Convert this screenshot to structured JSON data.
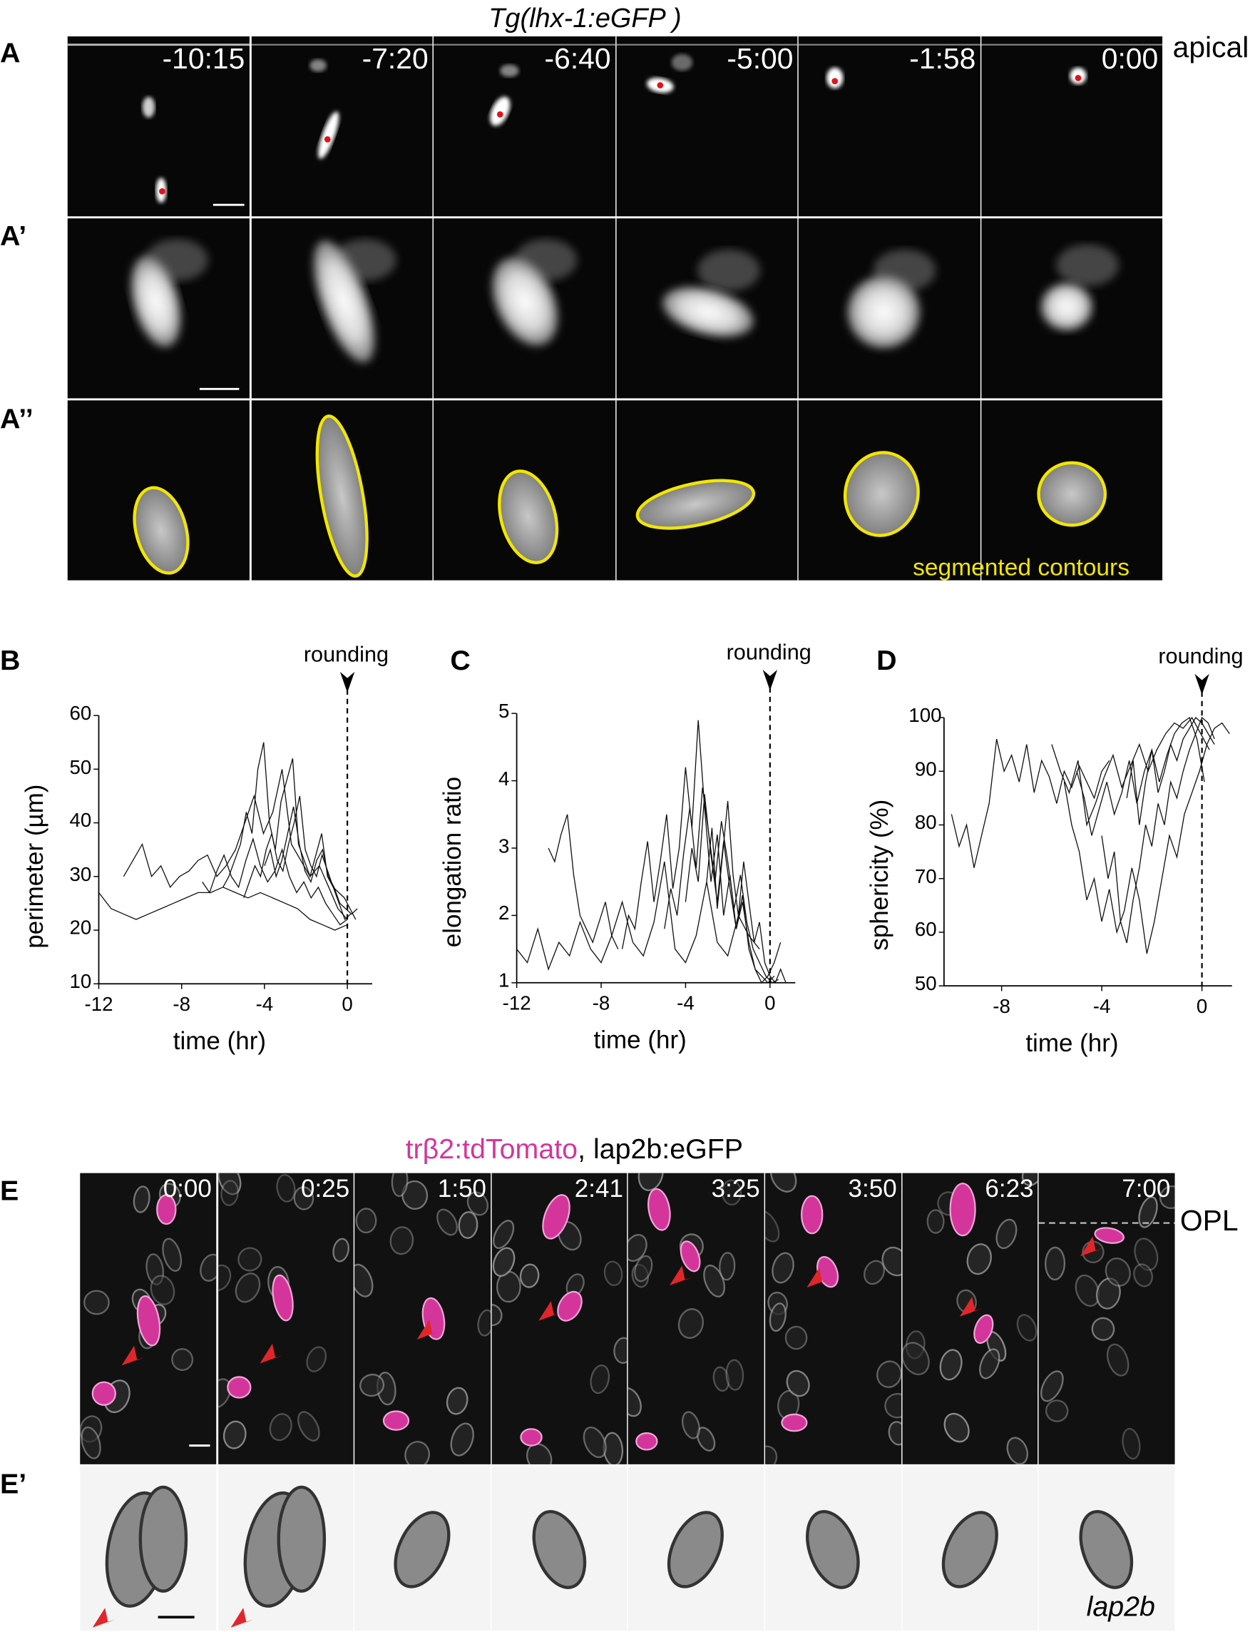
{
  "panel_labels": {
    "A": "A",
    "A1": "A’",
    "A2": "A’’",
    "B": "B",
    "C": "C",
    "D": "D",
    "E": "E",
    "E1": "E’"
  },
  "top": {
    "title": "Tg(lhx-1:eGFP )",
    "apical_label": "apical",
    "times": [
      "-10:15",
      "-7:20",
      "-6:40",
      "-5:00",
      "-1:58",
      "0:00"
    ],
    "contour_label": "segmented contours",
    "contour_color": "#f2e600",
    "marker_color": "#e0141e"
  },
  "bottom": {
    "title_magenta": "trβ2:tdTomato",
    "title_rest": ", lap2b:eGFP",
    "magenta_color": "#d4359b",
    "times": [
      "0:00",
      "0:25",
      "1:50",
      "2:41",
      "3:25",
      "3:50",
      "6:23",
      "7:00"
    ],
    "opl_label": "OPL",
    "lap2b_label": "lap2b",
    "arrow_color": "#e0262b"
  },
  "chart_data": [
    {
      "id": "B",
      "type": "line",
      "annotation": "rounding",
      "xlabel": "time (hr)",
      "ylabel": "perimeter (µm)",
      "xlim": [
        -12,
        1.2
      ],
      "ylim": [
        10,
        60
      ],
      "xticks": [
        -12,
        -8,
        -4,
        0
      ],
      "yticks": [
        10,
        20,
        30,
        40,
        50,
        60
      ],
      "series": [
        {
          "x_start": -12,
          "x_step": 0.6,
          "values": [
            27,
            24,
            23,
            22,
            23,
            24,
            25,
            26,
            27,
            27,
            28,
            27,
            26,
            27,
            26,
            25,
            24,
            22,
            21,
            20,
            21
          ]
        },
        {
          "x_start": -10.8,
          "x_step": 0.45,
          "values": [
            30,
            33,
            36,
            30,
            32,
            28,
            30,
            31,
            33,
            34,
            30,
            32,
            35,
            40,
            45,
            38,
            42,
            50,
            36,
            33,
            30,
            32,
            28,
            24,
            22
          ]
        },
        {
          "x_start": -6,
          "x_step": 0.28,
          "values": [
            28,
            30,
            33,
            36,
            42,
            38,
            50,
            55,
            40,
            35,
            44,
            48,
            52,
            36,
            33,
            30,
            34,
            38,
            30,
            28,
            25,
            22,
            23
          ]
        },
        {
          "x_start": -5,
          "x_step": 0.27,
          "values": [
            26,
            29,
            32,
            30,
            35,
            38,
            33,
            31,
            36,
            40,
            45,
            35,
            32,
            30,
            34,
            31,
            28,
            27,
            26,
            24,
            22
          ]
        },
        {
          "x_start": -4,
          "x_step": 0.28,
          "values": [
            32,
            35,
            30,
            33,
            38,
            43,
            36,
            31,
            29,
            33,
            35,
            30,
            28,
            25,
            24,
            23,
            24
          ]
        },
        {
          "x_start": -7,
          "x_step": 0.35,
          "values": [
            29,
            27,
            31,
            34,
            30,
            28,
            33,
            37,
            32,
            29,
            31,
            35,
            30,
            27,
            29,
            26,
            28,
            25,
            23,
            21,
            22
          ]
        }
      ]
    },
    {
      "id": "C",
      "type": "line",
      "annotation": "rounding",
      "xlabel": "time (hr)",
      "ylabel": "elongation ratio",
      "xlim": [
        -12,
        1.2
      ],
      "ylim": [
        1,
        5
      ],
      "xticks": [
        -12,
        -8,
        -4,
        0
      ],
      "yticks": [
        1,
        2,
        3,
        4,
        5
      ],
      "series": [
        {
          "x_start": -12,
          "x_step": 0.5,
          "values": [
            1.5,
            1.3,
            1.8,
            1.2,
            1.6,
            1.4,
            1.9,
            1.5,
            1.3,
            1.7,
            2.2,
            1.6,
            1.4,
            1.9,
            2.8,
            1.5,
            1.3,
            1.7,
            2.5,
            1.6,
            1.4,
            2.0,
            1.7,
            1.5
          ]
        },
        {
          "x_start": -10.5,
          "x_step": 0.3,
          "values": [
            3.0,
            2.8,
            3.2,
            3.5,
            2.6,
            2.0,
            1.8,
            1.6,
            1.9,
            2.2,
            1.7,
            1.5
          ]
        },
        {
          "x_start": -7,
          "x_step": 0.3,
          "values": [
            1.5,
            2.0,
            1.8,
            2.5,
            3.1,
            2.2,
            2.8,
            3.5,
            2.4,
            3.0,
            4.2,
            3.3,
            4.9,
            3.6,
            2.5,
            3.2,
            2.0,
            2.6,
            1.8,
            2.3,
            1.5,
            1.2,
            1.1,
            1.0,
            1.1
          ]
        },
        {
          "x_start": -5,
          "x_step": 0.3,
          "values": [
            1.8,
            2.4,
            2.0,
            2.9,
            3.6,
            2.7,
            3.9,
            3.2,
            2.5,
            3.4,
            2.8,
            2.1,
            2.6,
            1.9,
            1.5,
            1.3,
            1.1,
            1.0,
            1.05
          ]
        },
        {
          "x_start": -4,
          "x_step": 0.3,
          "values": [
            2.2,
            3.0,
            2.5,
            3.8,
            2.9,
            2.2,
            3.1,
            2.4,
            1.8,
            2.2,
            1.6,
            1.2,
            1.0,
            1.1,
            1.3,
            1.6
          ]
        },
        {
          "x_start": -3,
          "x_step": 0.25,
          "values": [
            2.5,
            3.3,
            2.1,
            2.9,
            3.7,
            2.6,
            2.0,
            2.8,
            2.2,
            1.6,
            1.9,
            1.3,
            1.1,
            1.0,
            1.2,
            1.0
          ]
        }
      ]
    },
    {
      "id": "D",
      "type": "line",
      "annotation": "rounding",
      "xlabel": "time (hr)",
      "ylabel": "sphericity (%)",
      "xlim": [
        -10.3,
        1.2
      ],
      "ylim": [
        50,
        100
      ],
      "xticks": [
        -8,
        -4,
        0
      ],
      "yticks": [
        50,
        60,
        70,
        80,
        90,
        100
      ],
      "series": [
        {
          "x_start": -10,
          "x_step": 0.3,
          "values": [
            82,
            76,
            80,
            72,
            78,
            84,
            96,
            90,
            93,
            88,
            95,
            86,
            92,
            89,
            84,
            90,
            87,
            91,
            88,
            85,
            90,
            92
          ]
        },
        {
          "x_start": -5.5,
          "x_step": 0.3,
          "values": [
            88,
            80,
            75,
            66,
            70,
            62,
            68,
            60,
            64,
            72,
            66,
            56,
            62,
            70,
            78,
            74,
            82,
            86,
            90,
            95,
            98,
            99,
            97
          ]
        },
        {
          "x_start": -4,
          "x_step": 0.25,
          "values": [
            78,
            70,
            75,
            62,
            58,
            66,
            72,
            80,
            76,
            84,
            80,
            88,
            85,
            90,
            94,
            97,
            100,
            99,
            96
          ]
        },
        {
          "x_start": -3,
          "x_step": 0.25,
          "values": [
            85,
            92,
            80,
            88,
            94,
            86,
            90,
            95,
            92,
            96,
            98,
            100,
            99,
            97,
            95
          ]
        },
        {
          "x_start": -5,
          "x_step": 0.3,
          "values": [
            90,
            85,
            78,
            83,
            88,
            82,
            86,
            92,
            84,
            90,
            94,
            88,
            93,
            97,
            99,
            100,
            96,
            88
          ]
        },
        {
          "x_start": -6,
          "x_step": 0.35,
          "values": [
            95,
            90,
            86,
            92,
            80,
            84,
            89,
            93,
            87,
            91,
            95,
            90,
            94,
            97,
            99,
            98,
            100,
            97,
            94
          ]
        }
      ]
    }
  ]
}
